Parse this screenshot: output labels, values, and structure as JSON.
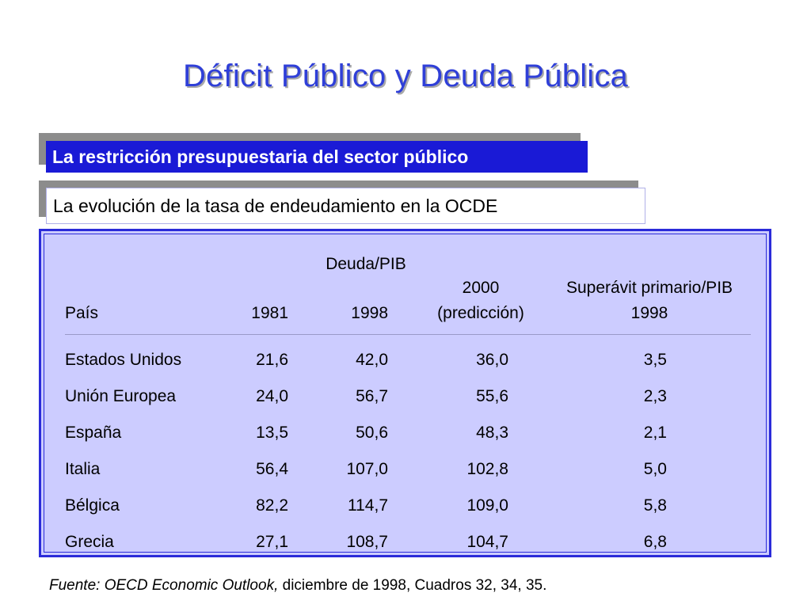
{
  "title": "Déficit Público y Deuda Pública",
  "section_heading": "La restricción presupuestaria del sector público",
  "subheading": "La evolución de la tasa de endeudamiento en la OCDE",
  "table": {
    "group_header": "Deuda/PIB",
    "columns": {
      "country": "País",
      "y1981": "1981",
      "y1998": "1998",
      "y2000_line1": "2000",
      "y2000_line2": "(predicción)",
      "surplus_line1": "Superávit primario/PIB",
      "surplus_line2": "1998"
    },
    "rows": [
      {
        "country": "Estados Unidos",
        "y1981": "21,6",
        "y1998": "42,0",
        "y2000": "36,0",
        "surplus": "3,5"
      },
      {
        "country": "Unión Europea",
        "y1981": "24,0",
        "y1998": "56,7",
        "y2000": "55,6",
        "surplus": "2,3"
      },
      {
        "country": "España",
        "y1981": "13,5",
        "y1998": "50,6",
        "y2000": "48,3",
        "surplus": "2,1"
      },
      {
        "country": "Italia",
        "y1981": "56,4",
        "y1998": "107,0",
        "y2000": "102,8",
        "surplus": "5,0"
      },
      {
        "country": "Bélgica",
        "y1981": "82,2",
        "y1998": "114,7",
        "y2000": "109,0",
        "surplus": "5,8"
      },
      {
        "country": "Grecia",
        "y1981": "27,1",
        "y1998": "108,7",
        "y2000": "104,7",
        "surplus": "6,8"
      }
    ]
  },
  "source": {
    "prefix": "Fuente:  OECD Economic Outlook,",
    "rest": " diciembre de 1998, Cuadros 32, 34, 35."
  }
}
